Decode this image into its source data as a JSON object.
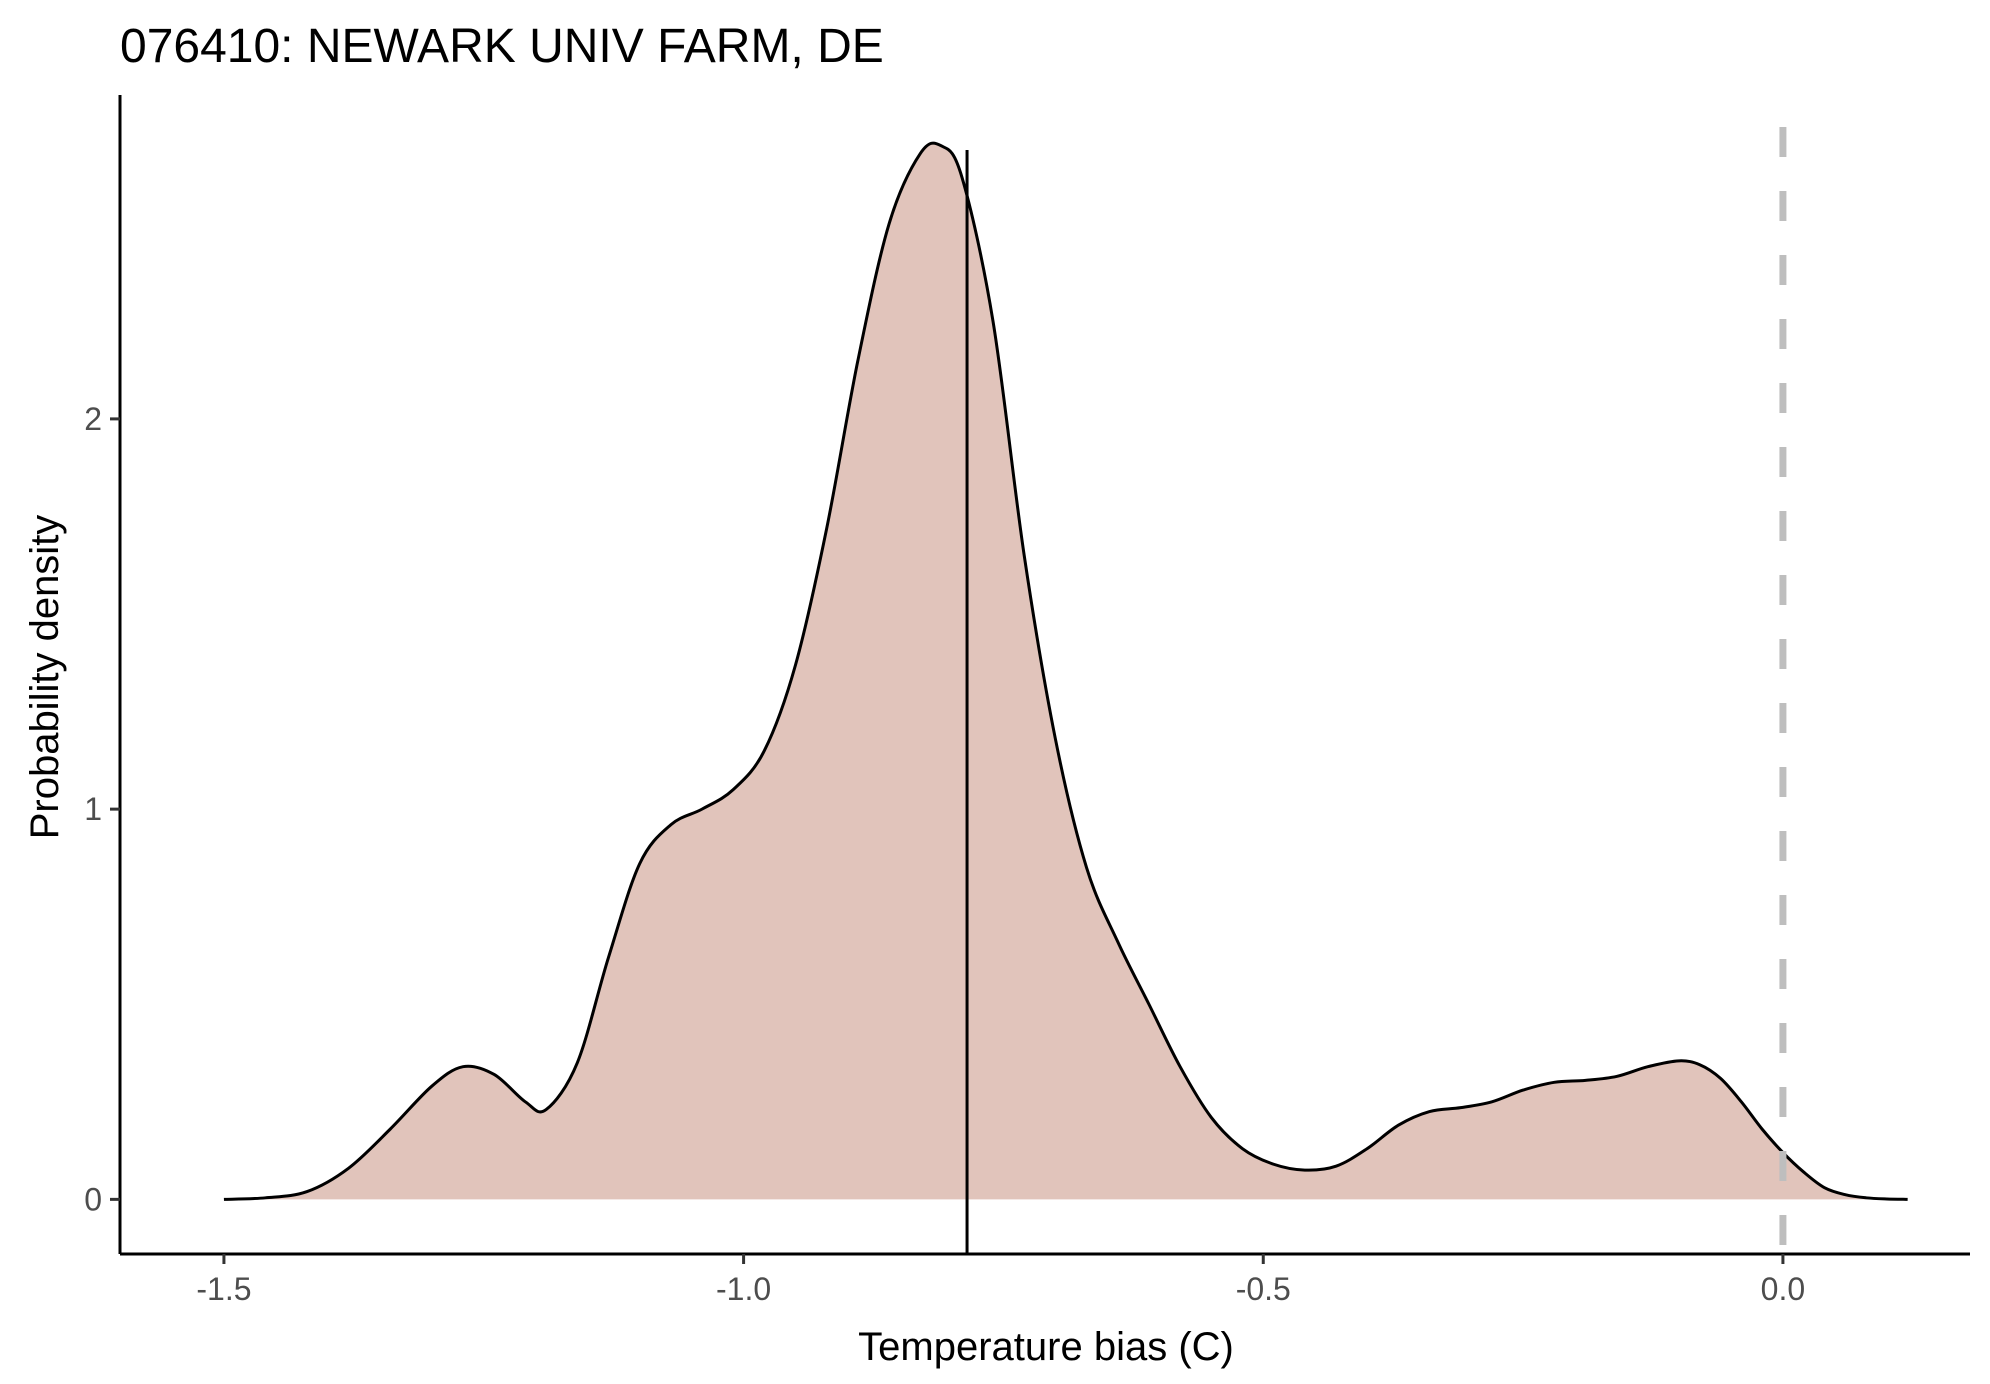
{
  "chart_data": {
    "type": "area",
    "title": "076410: NEWARK UNIV FARM, DE",
    "xlabel": "Temperature bias (C)",
    "ylabel": "Probability density",
    "xlim": [
      -1.6,
      0.18
    ],
    "ylim": [
      -0.14,
      2.83
    ],
    "x_ticks": [
      -1.5,
      -1.0,
      -0.5,
      0.0
    ],
    "x_tick_labels": [
      "-1.5",
      "-1.0",
      "-0.5",
      "0.0"
    ],
    "y_ticks": [
      0,
      1,
      2
    ],
    "y_tick_labels": [
      "0",
      "1",
      "2"
    ],
    "grid": false,
    "legend": "none",
    "series": [
      {
        "x": [
          -1.5,
          -1.46,
          -1.42,
          -1.38,
          -1.34,
          -1.3,
          -1.27,
          -1.24,
          -1.21,
          -1.19,
          -1.16,
          -1.13,
          -1.1,
          -1.07,
          -1.04,
          -1.01,
          -0.98,
          -0.95,
          -0.92,
          -0.89,
          -0.86,
          -0.83,
          -0.81,
          -0.79,
          -0.76,
          -0.73,
          -0.7,
          -0.67,
          -0.64,
          -0.61,
          -0.58,
          -0.55,
          -0.52,
          -0.49,
          -0.46,
          -0.43,
          -0.4,
          -0.37,
          -0.34,
          -0.31,
          -0.28,
          -0.25,
          -0.22,
          -0.19,
          -0.16,
          -0.13,
          -0.1,
          -0.08,
          -0.06,
          -0.04,
          -0.02,
          0.0,
          0.02,
          0.04,
          0.06,
          0.08,
          0.1,
          0.12
        ],
        "y": [
          0.0,
          0.004,
          0.02,
          0.08,
          0.18,
          0.29,
          0.34,
          0.32,
          0.25,
          0.23,
          0.35,
          0.62,
          0.86,
          0.96,
          1.0,
          1.05,
          1.15,
          1.37,
          1.72,
          2.15,
          2.5,
          2.68,
          2.7,
          2.62,
          2.25,
          1.65,
          1.18,
          0.85,
          0.66,
          0.5,
          0.34,
          0.21,
          0.13,
          0.09,
          0.075,
          0.085,
          0.13,
          0.19,
          0.225,
          0.235,
          0.25,
          0.28,
          0.3,
          0.305,
          0.315,
          0.34,
          0.355,
          0.345,
          0.31,
          0.25,
          0.18,
          0.12,
          0.07,
          0.03,
          0.012,
          0.004,
          0.001,
          0.0
        ],
        "color": "#e1c4bb",
        "line_color": "#000000"
      }
    ],
    "annotations": [
      {
        "type": "vline",
        "x": -0.785,
        "style": "solid",
        "color": "#000000"
      },
      {
        "type": "vline",
        "x": 0.0,
        "style": "dashed",
        "color": "#bebebe"
      }
    ]
  }
}
